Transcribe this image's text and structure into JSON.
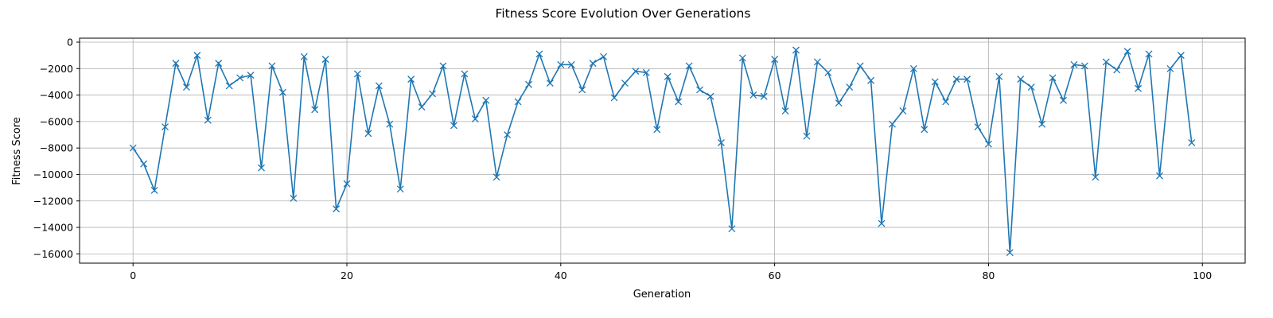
{
  "chart_data": {
    "type": "line",
    "title": "Fitness Score Evolution Over Generations",
    "xlabel": "Generation",
    "ylabel": "Fitness Score",
    "xlim": [
      -5,
      104
    ],
    "ylim": [
      -16700,
      300
    ],
    "xticks": [
      0,
      20,
      40,
      60,
      80,
      100
    ],
    "xtick_labels": [
      "0",
      "20",
      "40",
      "60",
      "80",
      "100"
    ],
    "yticks": [
      0,
      -2000,
      -4000,
      -6000,
      -8000,
      -10000,
      -12000,
      -14000,
      -16000
    ],
    "ytick_labels": [
      "0",
      "−2000",
      "−4000",
      "−6000",
      "−8000",
      "−10000",
      "−12000",
      "−14000",
      "−16000"
    ],
    "grid": true,
    "marker": "x",
    "color": "#1f77b4",
    "series": [
      {
        "name": "Fitness Score",
        "x": [
          0,
          1,
          2,
          3,
          4,
          5,
          6,
          7,
          8,
          9,
          10,
          11,
          12,
          13,
          14,
          15,
          16,
          17,
          18,
          19,
          20,
          21,
          22,
          23,
          24,
          25,
          26,
          27,
          28,
          29,
          30,
          31,
          32,
          33,
          34,
          35,
          36,
          37,
          38,
          39,
          40,
          41,
          42,
          43,
          44,
          45,
          46,
          47,
          48,
          49,
          50,
          51,
          52,
          53,
          54,
          55,
          56,
          57,
          58,
          59,
          60,
          61,
          62,
          63,
          64,
          65,
          66,
          67,
          68,
          69,
          70,
          71,
          72,
          73,
          74,
          75,
          76,
          77,
          78,
          79,
          80,
          81,
          82,
          83,
          84,
          85,
          86,
          87,
          88,
          89,
          90,
          91,
          92,
          93,
          94,
          95,
          96,
          97,
          98,
          99
        ],
        "values": [
          -8000,
          -9200,
          -11200,
          -6400,
          -1600,
          -3400,
          -1000,
          -5900,
          -1600,
          -3300,
          -2700,
          -2500,
          -9500,
          -1800,
          -3800,
          -11800,
          -1100,
          -5100,
          -1300,
          -12600,
          -10700,
          -2400,
          -6900,
          -3300,
          -6200,
          -11100,
          -2800,
          -4900,
          -3900,
          -1800,
          -6300,
          -2400,
          -5800,
          -4400,
          -10200,
          -7000,
          -4500,
          -3200,
          -900,
          -3100,
          -1700,
          -1700,
          -3600,
          -1600,
          -1100,
          -4200,
          -3100,
          -2200,
          -2300,
          -6600,
          -2600,
          -4500,
          -1800,
          -3600,
          -4100,
          -7600,
          -14100,
          -1200,
          -4000,
          -4100,
          -1300,
          -5200,
          -600,
          -7100,
          -1500,
          -2300,
          -4600,
          -3400,
          -1800,
          -2900,
          -13700,
          -6200,
          -5200,
          -2000,
          -6600,
          -3000,
          -4500,
          -2800,
          -2800,
          -6400,
          -7700,
          -2600,
          -15900,
          -2800,
          -3400,
          -6200,
          -2700,
          -4400,
          -1700,
          -1800,
          -10200,
          -1500,
          -2100,
          -700,
          -3500,
          -900,
          -10100,
          -2000,
          -1000,
          -7600
        ]
      }
    ]
  }
}
